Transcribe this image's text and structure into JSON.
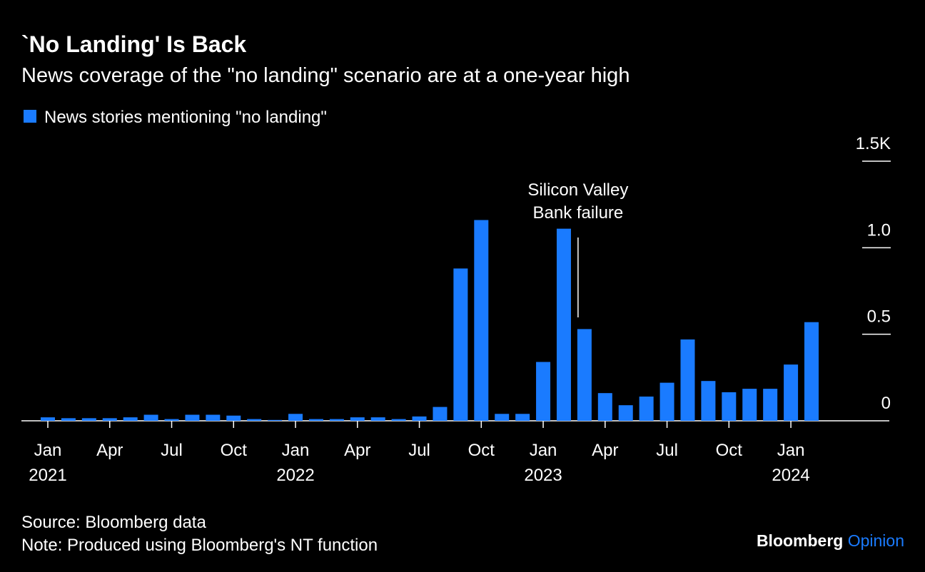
{
  "chart_data": {
    "type": "bar",
    "title": "`No Landing' Is Back",
    "subtitle": "News coverage of the \"no landing\" scenario are at a one-year high",
    "series": [
      {
        "name": "News stories mentioning \"no landing\"",
        "color": "#1a7bff",
        "values": [
          0.02,
          0.015,
          0.015,
          0.015,
          0.02,
          0.035,
          0.01,
          0.035,
          0.035,
          0.03,
          0.01,
          0.005,
          0.04,
          0.01,
          0.01,
          0.02,
          0.02,
          0.01,
          0.025,
          0.08,
          0.88,
          1.16,
          0.04,
          0.04,
          0.34,
          1.11,
          0.53,
          0.16,
          0.09,
          0.14,
          0.22,
          0.47,
          0.23,
          0.165,
          0.185,
          0.185,
          0.325,
          0.57
        ]
      }
    ],
    "categories": [
      "Jan",
      null,
      null,
      "Apr",
      null,
      null,
      "Jul",
      null,
      null,
      "Oct",
      null,
      null,
      "Jan",
      null,
      null,
      "Apr",
      null,
      null,
      "Jul",
      null,
      null,
      "Oct",
      null,
      null,
      "Jan",
      null,
      null,
      "Apr",
      null,
      null,
      "Jul",
      null,
      null,
      "Oct",
      null,
      null,
      "Jan",
      null
    ],
    "x_year_labels": [
      "2021",
      null,
      null,
      null,
      null,
      null,
      null,
      null,
      null,
      null,
      null,
      null,
      "2022",
      null,
      null,
      null,
      null,
      null,
      null,
      null,
      null,
      null,
      null,
      null,
      "2023",
      null,
      null,
      null,
      null,
      null,
      null,
      null,
      null,
      null,
      null,
      null,
      "2024",
      null
    ],
    "ylim": [
      0,
      1.5
    ],
    "yticks": [
      0,
      0.5,
      {
        "value": 1,
        "label": "1.0"
      },
      {
        "value": 1.5,
        "label": "1.5K"
      }
    ],
    "annotation": {
      "lines": [
        "Silicon Valley",
        "Bank failure"
      ],
      "category_index": 26
    },
    "source": "Source: Bloomberg data",
    "note": "Note: Produced using Bloomberg's NT function",
    "brand": [
      "Bloomberg",
      "Opinion"
    ]
  }
}
